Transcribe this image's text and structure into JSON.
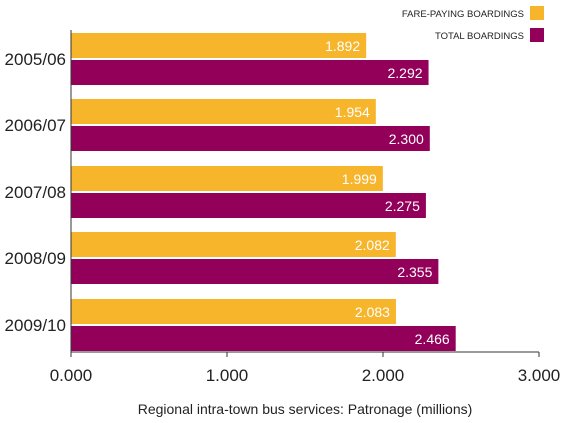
{
  "chart_data": {
    "type": "bar",
    "orientation": "horizontal",
    "categories": [
      "2005/06",
      "2006/07",
      "2007/08",
      "2008/09",
      "2009/10"
    ],
    "series": [
      {
        "name": "FARE-PAYING BOARDINGS",
        "color": "#F7B52C",
        "values": [
          1.892,
          1.954,
          1.999,
          2.082,
          2.083
        ],
        "value_labels": [
          "1.892",
          "1.954",
          "1.999",
          "2.082",
          "2.083"
        ]
      },
      {
        "name": "TOTAL BOARDINGS",
        "color": "#92005A",
        "values": [
          2.292,
          2.3,
          2.275,
          2.355,
          2.466
        ],
        "value_labels": [
          "2.292",
          "2.300",
          "2.275",
          "2.355",
          "2.466"
        ]
      }
    ],
    "xlim": [
      0,
      3
    ],
    "ticks": [
      0,
      1,
      2,
      3
    ],
    "tick_labels": [
      "0.000",
      "1.000",
      "2.000",
      "3.000"
    ],
    "xlabel": "Regional intra-town bus services: Patronage (millions)",
    "ylabel": "",
    "title": "",
    "legend_position": "top-right",
    "grid": false
  }
}
